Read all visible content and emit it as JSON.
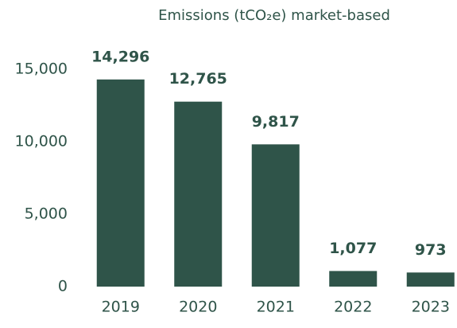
{
  "chart_data": {
    "type": "bar",
    "title": "Emissions (tCO₂e) market-based",
    "categories": [
      "2019",
      "2020",
      "2021",
      "2022",
      "2023"
    ],
    "values": [
      14296,
      12765,
      9817,
      1077,
      973
    ],
    "value_labels": [
      "14,296",
      "12,765",
      "9,817",
      "1,077",
      "973"
    ],
    "color": "#2f5449",
    "ylim": [
      0,
      15000
    ],
    "yticks": [
      0,
      {
        "value": 5000,
        "label": "5,000"
      },
      {
        "value": 10000,
        "label": "10,000"
      },
      {
        "value": 15000,
        "label": "15,000"
      }
    ],
    "grid": false
  }
}
